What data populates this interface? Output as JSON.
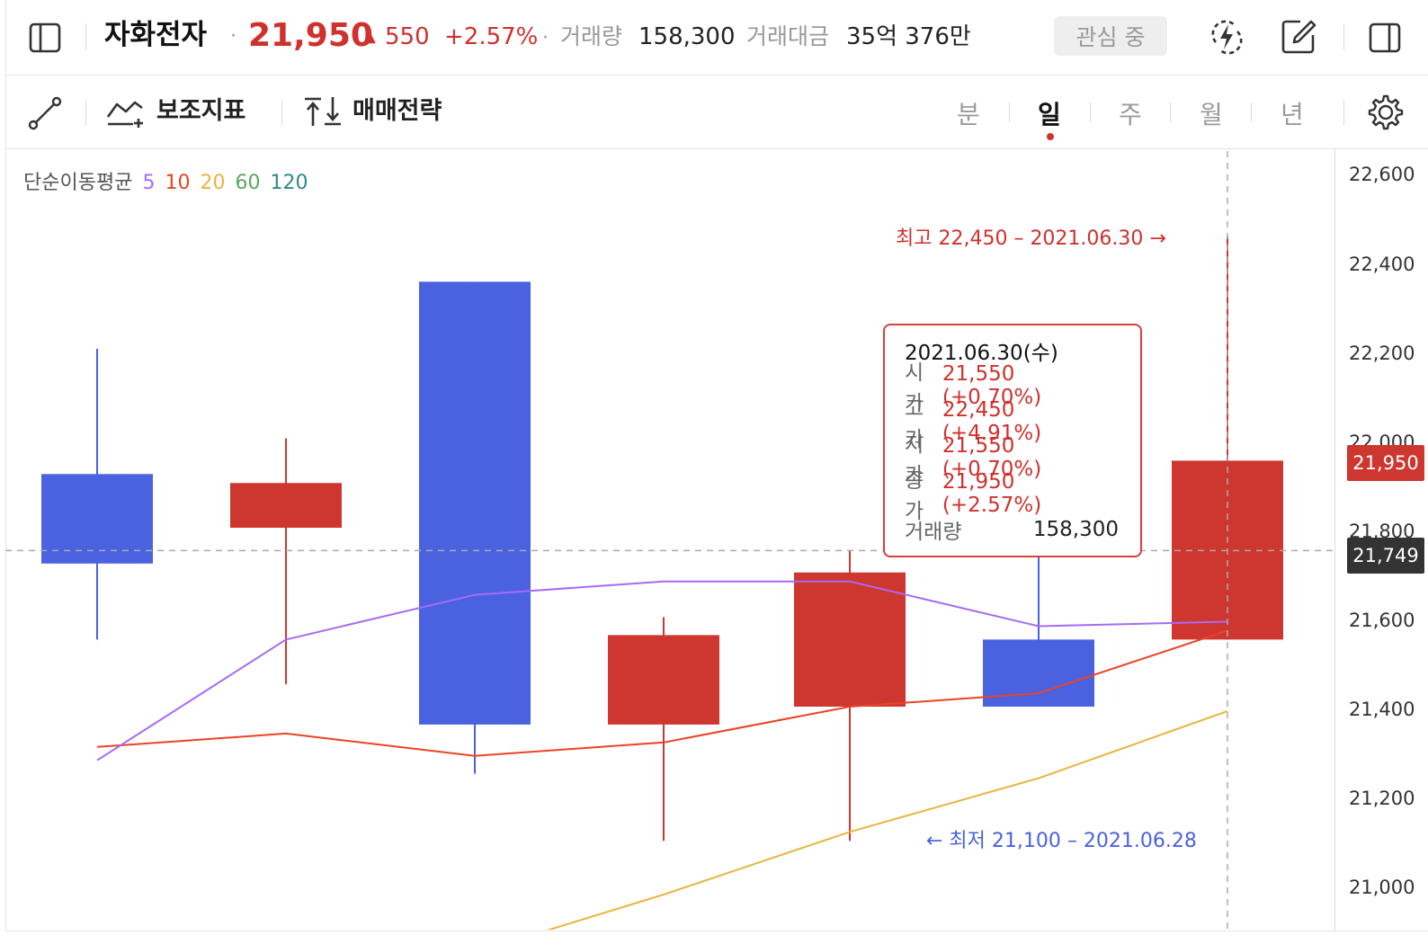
{
  "header": {
    "name": "자화전자",
    "dot1": "·",
    "price": "21,950",
    "change_arrow": "▲",
    "change": "550",
    "change_pct": "+2.57%",
    "dot2": "·",
    "volume_label": "거래량",
    "volume_value": "158,300",
    "trade_value_label": "거래대금",
    "trade_value": "35억 376만",
    "watch_label": "관심 중"
  },
  "toolbar": {
    "indicators_label": "보조지표",
    "strategy_label": "매매전략",
    "periods": [
      "분",
      "일",
      "주",
      "월",
      "년"
    ],
    "active_period": "일"
  },
  "legend": {
    "title": "단순이동평균",
    "ma": [
      {
        "label": "5",
        "color": "#a66bf5"
      },
      {
        "label": "10",
        "color": "#ea4325"
      },
      {
        "label": "20",
        "color": "#e9b53f"
      },
      {
        "label": "60",
        "color": "#5ba85a"
      },
      {
        "label": "120",
        "color": "#2e8a8c"
      }
    ]
  },
  "colors": {
    "up": "#ce3630",
    "down": "#4a62e0",
    "accent": "#d0312d"
  },
  "y_axis": {
    "ticks": [
      "22,600",
      "22,400",
      "22,200",
      "22,000",
      "21,800",
      "21,600",
      "21,400",
      "21,200",
      "21,000"
    ],
    "current_price_badge": "21,950",
    "crosshair_badge": "21,749"
  },
  "annotations": {
    "high_text": "최고 22,450 – 2021.06.30 →",
    "low_text": "← 최저 21,100 – 2021.06.28"
  },
  "tooltip": {
    "date": "2021.06.30(수)",
    "rows": [
      {
        "label": "시가",
        "value": "21,550 (+0.70%)"
      },
      {
        "label": "고가",
        "value": "22,450 (+4.91%)"
      },
      {
        "label": "저가",
        "value": "21,550 (+0.70%)"
      },
      {
        "label": "종가",
        "value": "21,950 (+2.57%)"
      }
    ],
    "volume_label": "거래량",
    "volume_value": "158,300"
  },
  "chart_data": {
    "type": "candlestick",
    "y_range": [
      20900,
      22650
    ],
    "candles": [
      {
        "open": 21920,
        "close": 21720,
        "high": 22200,
        "low": 21550
      },
      {
        "open": 21800,
        "close": 21900,
        "high": 22000,
        "low": 21450
      },
      {
        "open": 22350,
        "close": 21360,
        "high": 22350,
        "low": 21250
      },
      {
        "open": 21360,
        "close": 21560,
        "high": 21600,
        "low": 21100
      },
      {
        "open": 21400,
        "close": 21700,
        "high": 21750,
        "low": 21100
      },
      {
        "open": 21550,
        "close": 21400,
        "high": 21750,
        "low": 21400
      },
      {
        "open": 21550,
        "close": 21950,
        "high": 22450,
        "low": 21550
      }
    ],
    "ma5": [
      21280,
      21550,
      21650,
      21680,
      21680,
      21580,
      21590
    ],
    "ma10": [
      21310,
      21340,
      21290,
      21320,
      21400,
      21430,
      21570
    ],
    "ma20": [
      null,
      null,
      20850,
      20980,
      21120,
      21240,
      21390
    ]
  }
}
